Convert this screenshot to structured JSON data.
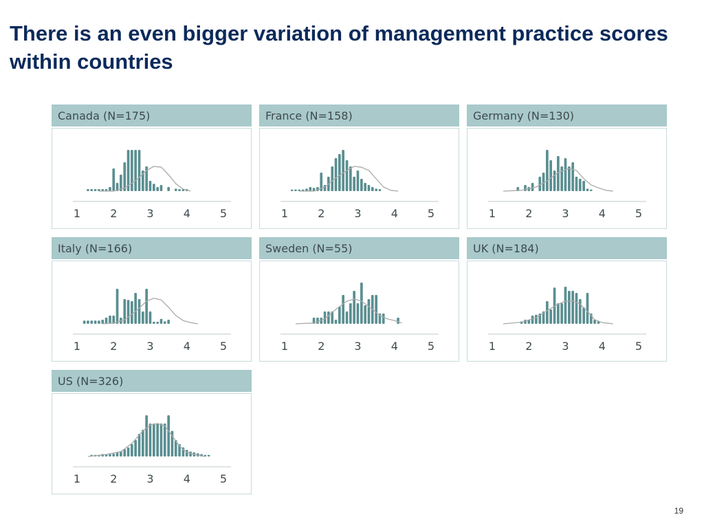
{
  "slide": {
    "title": "There is an even bigger variation of management practice scores within countries",
    "page_number": "19"
  },
  "colors": {
    "header_bg": "#a9c9cb",
    "bar": "#5b8f91",
    "curve": "#aaaaaa",
    "title": "#0b2a5b"
  },
  "chart_data": [
    {
      "type": "bar",
      "title": "Canada (N=175)",
      "x_ticks": [
        "1",
        "2",
        "3",
        "4",
        "5"
      ],
      "xlim": [
        1,
        5
      ],
      "bin_width": 0.1,
      "curve": [
        [
          1.6,
          0
        ],
        [
          2.0,
          0
        ],
        [
          2.3,
          0.08
        ],
        [
          2.6,
          0.25
        ],
        [
          2.9,
          0.5
        ],
        [
          3.1,
          0.6
        ],
        [
          3.3,
          0.58
        ],
        [
          3.5,
          0.4
        ],
        [
          3.7,
          0.18
        ],
        [
          3.9,
          0.05
        ],
        [
          4.1,
          0
        ]
      ],
      "bars": [
        [
          1.3,
          0.05
        ],
        [
          1.4,
          0.05
        ],
        [
          1.5,
          0.05
        ],
        [
          1.6,
          0.05
        ],
        [
          1.7,
          0.05
        ],
        [
          1.8,
          0.05
        ],
        [
          1.9,
          0.1
        ],
        [
          2.0,
          0.55
        ],
        [
          2.1,
          0.2
        ],
        [
          2.2,
          0.4
        ],
        [
          2.3,
          0.7
        ],
        [
          2.4,
          1.0
        ],
        [
          2.5,
          1.0
        ],
        [
          2.6,
          1.0
        ],
        [
          2.7,
          1.0
        ],
        [
          2.8,
          0.5
        ],
        [
          2.9,
          0.6
        ],
        [
          3.0,
          0.25
        ],
        [
          3.1,
          0.18
        ],
        [
          3.2,
          0.1
        ],
        [
          3.3,
          0.15
        ],
        [
          3.5,
          0.1
        ],
        [
          3.7,
          0.06
        ],
        [
          3.8,
          0.05
        ],
        [
          3.9,
          0.05
        ],
        [
          4.0,
          0.05
        ]
      ]
    },
    {
      "type": "bar",
      "title": "France (N=158)",
      "x_ticks": [
        "1",
        "2",
        "3",
        "4",
        "5"
      ],
      "xlim": [
        1,
        5
      ],
      "bin_width": 0.1,
      "curve": [
        [
          1.4,
          0
        ],
        [
          1.8,
          0
        ],
        [
          2.1,
          0.1
        ],
        [
          2.4,
          0.32
        ],
        [
          2.7,
          0.5
        ],
        [
          2.9,
          0.6
        ],
        [
          3.1,
          0.58
        ],
        [
          3.3,
          0.5
        ],
        [
          3.5,
          0.3
        ],
        [
          3.7,
          0.1
        ],
        [
          3.9,
          0.02
        ],
        [
          4.1,
          0
        ]
      ],
      "bars": [
        [
          1.2,
          0.04
        ],
        [
          1.3,
          0.04
        ],
        [
          1.4,
          0.04
        ],
        [
          1.5,
          0.04
        ],
        [
          1.6,
          0.06
        ],
        [
          1.7,
          0.1
        ],
        [
          1.8,
          0.08
        ],
        [
          1.9,
          0.1
        ],
        [
          2.0,
          0.45
        ],
        [
          2.1,
          0.15
        ],
        [
          2.2,
          0.35
        ],
        [
          2.3,
          0.6
        ],
        [
          2.4,
          0.8
        ],
        [
          2.5,
          0.9
        ],
        [
          2.6,
          1.0
        ],
        [
          2.7,
          0.75
        ],
        [
          2.8,
          0.6
        ],
        [
          2.9,
          0.35
        ],
        [
          3.0,
          0.5
        ],
        [
          3.1,
          0.3
        ],
        [
          3.2,
          0.2
        ],
        [
          3.3,
          0.15
        ],
        [
          3.4,
          0.1
        ],
        [
          3.5,
          0.06
        ],
        [
          3.6,
          0.05
        ]
      ]
    },
    {
      "type": "bar",
      "title": "Germany (N=130)",
      "x_ticks": [
        "1",
        "2",
        "3",
        "4",
        "5"
      ],
      "xlim": [
        1,
        5
      ],
      "bin_width": 0.1,
      "curve": [
        [
          1.3,
          0
        ],
        [
          1.8,
          0.02
        ],
        [
          2.2,
          0.1
        ],
        [
          2.5,
          0.25
        ],
        [
          2.8,
          0.45
        ],
        [
          3.1,
          0.55
        ],
        [
          3.3,
          0.5
        ],
        [
          3.5,
          0.3
        ],
        [
          3.7,
          0.15
        ],
        [
          3.9,
          0.08
        ],
        [
          4.1,
          0.02
        ],
        [
          4.3,
          0
        ]
      ],
      "bars": [
        [
          1.7,
          0.1
        ],
        [
          1.9,
          0.15
        ],
        [
          2.0,
          0.1
        ],
        [
          2.1,
          0.2
        ],
        [
          2.3,
          0.35
        ],
        [
          2.4,
          0.45
        ],
        [
          2.5,
          1.0
        ],
        [
          2.6,
          0.75
        ],
        [
          2.7,
          0.5
        ],
        [
          2.8,
          0.85
        ],
        [
          2.9,
          0.6
        ],
        [
          3.0,
          0.8
        ],
        [
          3.1,
          0.6
        ],
        [
          3.2,
          0.7
        ],
        [
          3.3,
          0.35
        ],
        [
          3.4,
          0.3
        ],
        [
          3.5,
          0.25
        ],
        [
          3.6,
          0.06
        ],
        [
          3.7,
          0.04
        ]
      ]
    },
    {
      "type": "bar",
      "title": "Italy (N=166)",
      "x_ticks": [
        "1",
        "2",
        "3",
        "4",
        "5"
      ],
      "xlim": [
        1,
        5
      ],
      "bin_width": 0.1,
      "curve": [
        [
          1.7,
          0
        ],
        [
          2.0,
          0.02
        ],
        [
          2.3,
          0.1
        ],
        [
          2.6,
          0.3
        ],
        [
          2.9,
          0.55
        ],
        [
          3.1,
          0.62
        ],
        [
          3.3,
          0.58
        ],
        [
          3.5,
          0.4
        ],
        [
          3.7,
          0.2
        ],
        [
          3.9,
          0.08
        ],
        [
          4.1,
          0.03
        ],
        [
          4.3,
          0
        ]
      ],
      "bars": [
        [
          1.2,
          0.08
        ],
        [
          1.3,
          0.08
        ],
        [
          1.4,
          0.08
        ],
        [
          1.5,
          0.08
        ],
        [
          1.6,
          0.08
        ],
        [
          1.7,
          0.1
        ],
        [
          1.8,
          0.15
        ],
        [
          1.9,
          0.2
        ],
        [
          2.0,
          0.2
        ],
        [
          2.1,
          0.85
        ],
        [
          2.2,
          0.15
        ],
        [
          2.3,
          0.6
        ],
        [
          2.4,
          0.58
        ],
        [
          2.5,
          0.55
        ],
        [
          2.6,
          0.75
        ],
        [
          2.7,
          0.6
        ],
        [
          2.8,
          0.3
        ],
        [
          2.9,
          0.85
        ],
        [
          3.0,
          0.3
        ],
        [
          3.1,
          0.05
        ],
        [
          3.2,
          0.05
        ],
        [
          3.3,
          0.12
        ],
        [
          3.4,
          0.06
        ],
        [
          3.5,
          0.1
        ]
      ]
    },
    {
      "type": "bar",
      "title": "Sweden (N=55)",
      "x_ticks": [
        "1",
        "2",
        "3",
        "4",
        "5"
      ],
      "xlim": [
        1,
        5
      ],
      "bin_width": 0.1,
      "curve": [
        [
          1.3,
          0
        ],
        [
          1.8,
          0.02
        ],
        [
          2.1,
          0.12
        ],
        [
          2.4,
          0.35
        ],
        [
          2.7,
          0.55
        ],
        [
          2.9,
          0.6
        ],
        [
          3.1,
          0.55
        ],
        [
          3.4,
          0.35
        ],
        [
          3.6,
          0.2
        ],
        [
          3.8,
          0.12
        ],
        [
          4.0,
          0.08
        ],
        [
          4.2,
          0.02
        ]
      ],
      "bars": [
        [
          1.8,
          0.15
        ],
        [
          1.9,
          0.15
        ],
        [
          2.0,
          0.15
        ],
        [
          2.1,
          0.3
        ],
        [
          2.2,
          0.3
        ],
        [
          2.3,
          0.3
        ],
        [
          2.4,
          0.1
        ],
        [
          2.5,
          0.42
        ],
        [
          2.6,
          0.7
        ],
        [
          2.7,
          0.3
        ],
        [
          2.8,
          0.5
        ],
        [
          2.9,
          0.8
        ],
        [
          3.0,
          0.5
        ],
        [
          3.1,
          1.0
        ],
        [
          3.2,
          0.45
        ],
        [
          3.3,
          0.6
        ],
        [
          3.4,
          0.7
        ],
        [
          3.5,
          0.7
        ],
        [
          3.6,
          0.25
        ],
        [
          3.7,
          0.25
        ],
        [
          4.1,
          0.15
        ]
      ]
    },
    {
      "type": "bar",
      "title": "UK (N=184)",
      "x_ticks": [
        "1",
        "2",
        "3",
        "4",
        "5"
      ],
      "xlim": [
        1,
        5
      ],
      "bin_width": 0.1,
      "curve": [
        [
          1.3,
          0
        ],
        [
          1.8,
          0.04
        ],
        [
          2.2,
          0.15
        ],
        [
          2.5,
          0.32
        ],
        [
          2.8,
          0.48
        ],
        [
          3.0,
          0.55
        ],
        [
          3.2,
          0.55
        ],
        [
          3.4,
          0.48
        ],
        [
          3.6,
          0.3
        ],
        [
          3.8,
          0.1
        ],
        [
          4.0,
          0.03
        ],
        [
          4.3,
          0
        ]
      ],
      "bars": [
        [
          1.8,
          0.06
        ],
        [
          1.9,
          0.1
        ],
        [
          2.0,
          0.1
        ],
        [
          2.1,
          0.2
        ],
        [
          2.2,
          0.22
        ],
        [
          2.3,
          0.25
        ],
        [
          2.4,
          0.3
        ],
        [
          2.5,
          0.55
        ],
        [
          2.6,
          0.35
        ],
        [
          2.7,
          0.88
        ],
        [
          2.8,
          0.5
        ],
        [
          2.9,
          0.5
        ],
        [
          3.0,
          0.9
        ],
        [
          3.1,
          0.8
        ],
        [
          3.2,
          0.8
        ],
        [
          3.3,
          0.75
        ],
        [
          3.4,
          0.6
        ],
        [
          3.5,
          0.4
        ],
        [
          3.6,
          0.75
        ],
        [
          3.7,
          0.25
        ],
        [
          3.8,
          0.1
        ],
        [
          3.9,
          0.06
        ]
      ]
    },
    {
      "type": "bar",
      "title": "US (N=326)",
      "x_ticks": [
        "1",
        "2",
        "3",
        "4",
        "5"
      ],
      "xlim": [
        1,
        5
      ],
      "bin_width": 0.1,
      "curve": [
        [
          1.3,
          0
        ],
        [
          1.8,
          0.05
        ],
        [
          2.2,
          0.12
        ],
        [
          2.5,
          0.32
        ],
        [
          2.8,
          0.62
        ],
        [
          3.0,
          0.76
        ],
        [
          3.2,
          0.8
        ],
        [
          3.4,
          0.74
        ],
        [
          3.6,
          0.5
        ],
        [
          3.8,
          0.25
        ],
        [
          4.0,
          0.1
        ],
        [
          4.3,
          0.03
        ],
        [
          4.5,
          0
        ]
      ],
      "bars": [
        [
          1.4,
          0.04
        ],
        [
          1.5,
          0.04
        ],
        [
          1.6,
          0.04
        ],
        [
          1.7,
          0.06
        ],
        [
          1.8,
          0.05
        ],
        [
          1.9,
          0.06
        ],
        [
          2.0,
          0.07
        ],
        [
          2.1,
          0.1
        ],
        [
          2.2,
          0.13
        ],
        [
          2.3,
          0.18
        ],
        [
          2.4,
          0.22
        ],
        [
          2.5,
          0.3
        ],
        [
          2.6,
          0.4
        ],
        [
          2.7,
          0.55
        ],
        [
          2.8,
          0.65
        ],
        [
          2.9,
          1.0
        ],
        [
          3.0,
          0.8
        ],
        [
          3.1,
          0.8
        ],
        [
          3.2,
          0.8
        ],
        [
          3.3,
          0.8
        ],
        [
          3.4,
          0.8
        ],
        [
          3.5,
          1.0
        ],
        [
          3.6,
          0.62
        ],
        [
          3.7,
          0.4
        ],
        [
          3.8,
          0.3
        ],
        [
          3.9,
          0.22
        ],
        [
          4.0,
          0.16
        ],
        [
          4.1,
          0.12
        ],
        [
          4.2,
          0.1
        ],
        [
          4.3,
          0.08
        ],
        [
          4.4,
          0.06
        ],
        [
          4.5,
          0.04
        ],
        [
          4.6,
          0.04
        ]
      ]
    }
  ]
}
